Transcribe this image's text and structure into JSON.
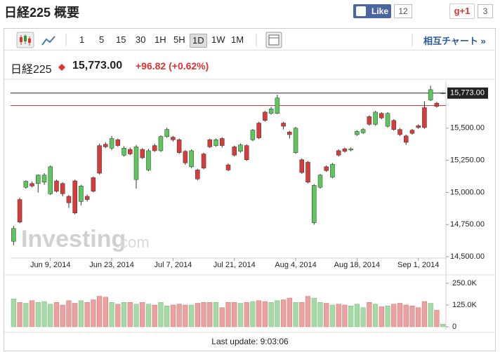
{
  "header": {
    "title": "日経225 概要",
    "like_label": "Like",
    "like_count": "12",
    "gplus_label": "g+1",
    "gplus_count": "3"
  },
  "toolbar": {
    "intervals": [
      "1",
      "5",
      "15",
      "30",
      "1H",
      "5H",
      "1D",
      "1W",
      "1M"
    ],
    "selected": "1D",
    "cross_chart": "相互チャート »"
  },
  "quote": {
    "name": "日経225",
    "price": "15,773.00",
    "change": "+96.82 (+0.62%)"
  },
  "watermark": {
    "brand": "Investing",
    "suffix": ".com"
  },
  "footer": {
    "last_update": "Last update: 9:03:06"
  },
  "chart_data": [
    {
      "type": "candlestick",
      "up_color": "#5cc85c",
      "down_color": "#d93a3a",
      "grid": false,
      "x": [
        "2014-05-30",
        "2014-06-02",
        "2014-06-03",
        "2014-06-04",
        "2014-06-05",
        "2014-06-06",
        "2014-06-09",
        "2014-06-10",
        "2014-06-11",
        "2014-06-12",
        "2014-06-13",
        "2014-06-16",
        "2014-06-17",
        "2014-06-18",
        "2014-06-19",
        "2014-06-20",
        "2014-06-23",
        "2014-06-24",
        "2014-06-25",
        "2014-06-26",
        "2014-06-27",
        "2014-06-30",
        "2014-07-01",
        "2014-07-02",
        "2014-07-03",
        "2014-07-04",
        "2014-07-07",
        "2014-07-08",
        "2014-07-09",
        "2014-07-10",
        "2014-07-11",
        "2014-07-14",
        "2014-07-15",
        "2014-07-16",
        "2014-07-17",
        "2014-07-18",
        "2014-07-21",
        "2014-07-22",
        "2014-07-23",
        "2014-07-24",
        "2014-07-25",
        "2014-07-28",
        "2014-07-29",
        "2014-07-30",
        "2014-07-31",
        "2014-08-01",
        "2014-08-04",
        "2014-08-05",
        "2014-08-06",
        "2014-08-07",
        "2014-08-08",
        "2014-08-11",
        "2014-08-12",
        "2014-08-13",
        "2014-08-14",
        "2014-08-15",
        "2014-08-18",
        "2014-08-19",
        "2014-08-20",
        "2014-08-21",
        "2014-08-22",
        "2014-08-25",
        "2014-08-26",
        "2014-08-27",
        "2014-08-28",
        "2014-08-29",
        "2014-09-01",
        "2014-09-02",
        "2014-09-03",
        "2014-09-04",
        "2014-09-05"
      ],
      "open": [
        14620,
        14945,
        15040,
        15070,
        15070,
        15080,
        14990,
        15090,
        15070,
        14970,
        15090,
        14930,
        14970,
        15115,
        15365,
        15375,
        15345,
        15410,
        15290,
        15335,
        15100,
        15335,
        15175,
        15365,
        15325,
        15435,
        15430,
        15410,
        15320,
        15200,
        15175,
        15300,
        15410,
        15365,
        15420,
        15215,
        15355,
        15320,
        15365,
        15410,
        15540,
        15625,
        15615,
        15615,
        15540,
        15470,
        15310,
        15255,
        15235,
        14765,
        15040,
        15200,
        15120,
        15325,
        15340,
        15330,
        15450,
        15465,
        15590,
        15530,
        15615,
        15515,
        15560,
        15490,
        15440,
        15485,
        15520,
        15660,
        15720,
        15695,
        15770
      ],
      "high": [
        14740,
        14960,
        15095,
        15085,
        15140,
        15150,
        15210,
        15100,
        15080,
        14980,
        15100,
        15060,
        14985,
        15125,
        15380,
        15390,
        15440,
        15420,
        15360,
        15350,
        15370,
        15345,
        15340,
        15380,
        15445,
        15505,
        15440,
        15420,
        15330,
        15335,
        15185,
        15310,
        15420,
        15420,
        15430,
        15225,
        15365,
        15380,
        15375,
        15495,
        15550,
        15635,
        15665,
        15760,
        15550,
        15480,
        15510,
        15265,
        15245,
        15065,
        15145,
        15210,
        15230,
        15335,
        15350,
        15350,
        15485,
        15500,
        15600,
        15635,
        15625,
        15625,
        15570,
        15500,
        15450,
        15495,
        15530,
        15710,
        15830,
        15705,
        15780
      ],
      "low": [
        14590,
        14760,
        15030,
        15040,
        15000,
        15060,
        14980,
        15000,
        14970,
        14880,
        14830,
        14900,
        14930,
        15000,
        15140,
        15345,
        15330,
        15355,
        15280,
        15290,
        15030,
        15260,
        15165,
        15315,
        15315,
        15425,
        15395,
        15300,
        15215,
        15190,
        15095,
        15180,
        15345,
        15355,
        15350,
        15165,
        15280,
        15310,
        15245,
        15400,
        15415,
        15550,
        15605,
        15610,
        15490,
        15420,
        15300,
        15145,
        15070,
        14750,
        15030,
        15160,
        15110,
        15280,
        15310,
        15320,
        15440,
        15455,
        15520,
        15520,
        15570,
        15505,
        15480,
        15440,
        15370,
        15450,
        15495,
        15495,
        15710,
        15660,
        15765
      ],
      "close": [
        14720,
        14770,
        15087,
        15050,
        15135,
        15135,
        15200,
        15010,
        14990,
        14920,
        14840,
        15050,
        14945,
        15010,
        15150,
        15355,
        15420,
        15365,
        15345,
        15300,
        15355,
        15270,
        15325,
        15325,
        15435,
        15490,
        15410,
        15310,
        15230,
        15325,
        15105,
        15190,
        15355,
        15410,
        15365,
        15175,
        15290,
        15370,
        15255,
        15485,
        15425,
        15560,
        15650,
        15735,
        15515,
        15450,
        15500,
        15155,
        15080,
        15055,
        15135,
        15170,
        15220,
        15290,
        15320,
        15340,
        15475,
        15490,
        15530,
        15625,
        15580,
        15615,
        15490,
        15450,
        15390,
        15460,
        15505,
        15505,
        15800,
        15670,
        15773
      ],
      "ylim": [
        14490,
        15870
      ],
      "yticks": [
        {
          "value": 14500,
          "label": "14,500.00"
        },
        {
          "value": 14750,
          "label": "14,750.00"
        },
        {
          "value": 15000,
          "label": "15,000.00"
        },
        {
          "value": 15250,
          "label": "15,250.00"
        },
        {
          "value": 15500,
          "label": "15,500.00"
        }
      ],
      "xticks": [
        {
          "value": "2014-06-09",
          "label": "Jun 9, 2014"
        },
        {
          "value": "2014-06-23",
          "label": "Jun 23, 2014"
        },
        {
          "value": "2014-07-07",
          "label": "Jul 7, 2014"
        },
        {
          "value": "2014-07-21",
          "label": "Jul 21, 2014"
        },
        {
          "value": "2014-08-04",
          "label": "Aug 4, 2014"
        },
        {
          "value": "2014-08-18",
          "label": "Aug 18, 2014"
        },
        {
          "value": "2014-09-01",
          "label": "Sep 1, 2014"
        }
      ],
      "reference_lines": [
        {
          "value": 15773,
          "label": "15,773.00",
          "color": "#222222"
        },
        {
          "value": 15676.18,
          "color": "#d93a3a"
        }
      ]
    },
    {
      "type": "bar",
      "values": [
        160000,
        140000,
        135000,
        150000,
        140000,
        145000,
        130000,
        140000,
        125000,
        150000,
        135000,
        150000,
        140000,
        155000,
        175000,
        170000,
        140000,
        130000,
        140000,
        140000,
        130000,
        140000,
        130000,
        125000,
        140000,
        120000,
        125000,
        130000,
        125000,
        125000,
        135000,
        140000,
        140000,
        140000,
        110000,
        140000,
        140000,
        135000,
        140000,
        145000,
        150000,
        145000,
        140000,
        150000,
        155000,
        165000,
        140000,
        140000,
        175000,
        165000,
        140000,
        135000,
        125000,
        130000,
        125000,
        120000,
        130000,
        110000,
        140000,
        130000,
        115000,
        120000,
        130000,
        135000,
        125000,
        120000,
        110000,
        145000,
        135000,
        95000,
        15000
      ],
      "ylim": [
        0,
        270000
      ],
      "yticks": [
        0,
        {
          "value": 125000,
          "label": "125.0K"
        },
        {
          "value": 250000,
          "label": "250.0K"
        }
      ]
    }
  ]
}
